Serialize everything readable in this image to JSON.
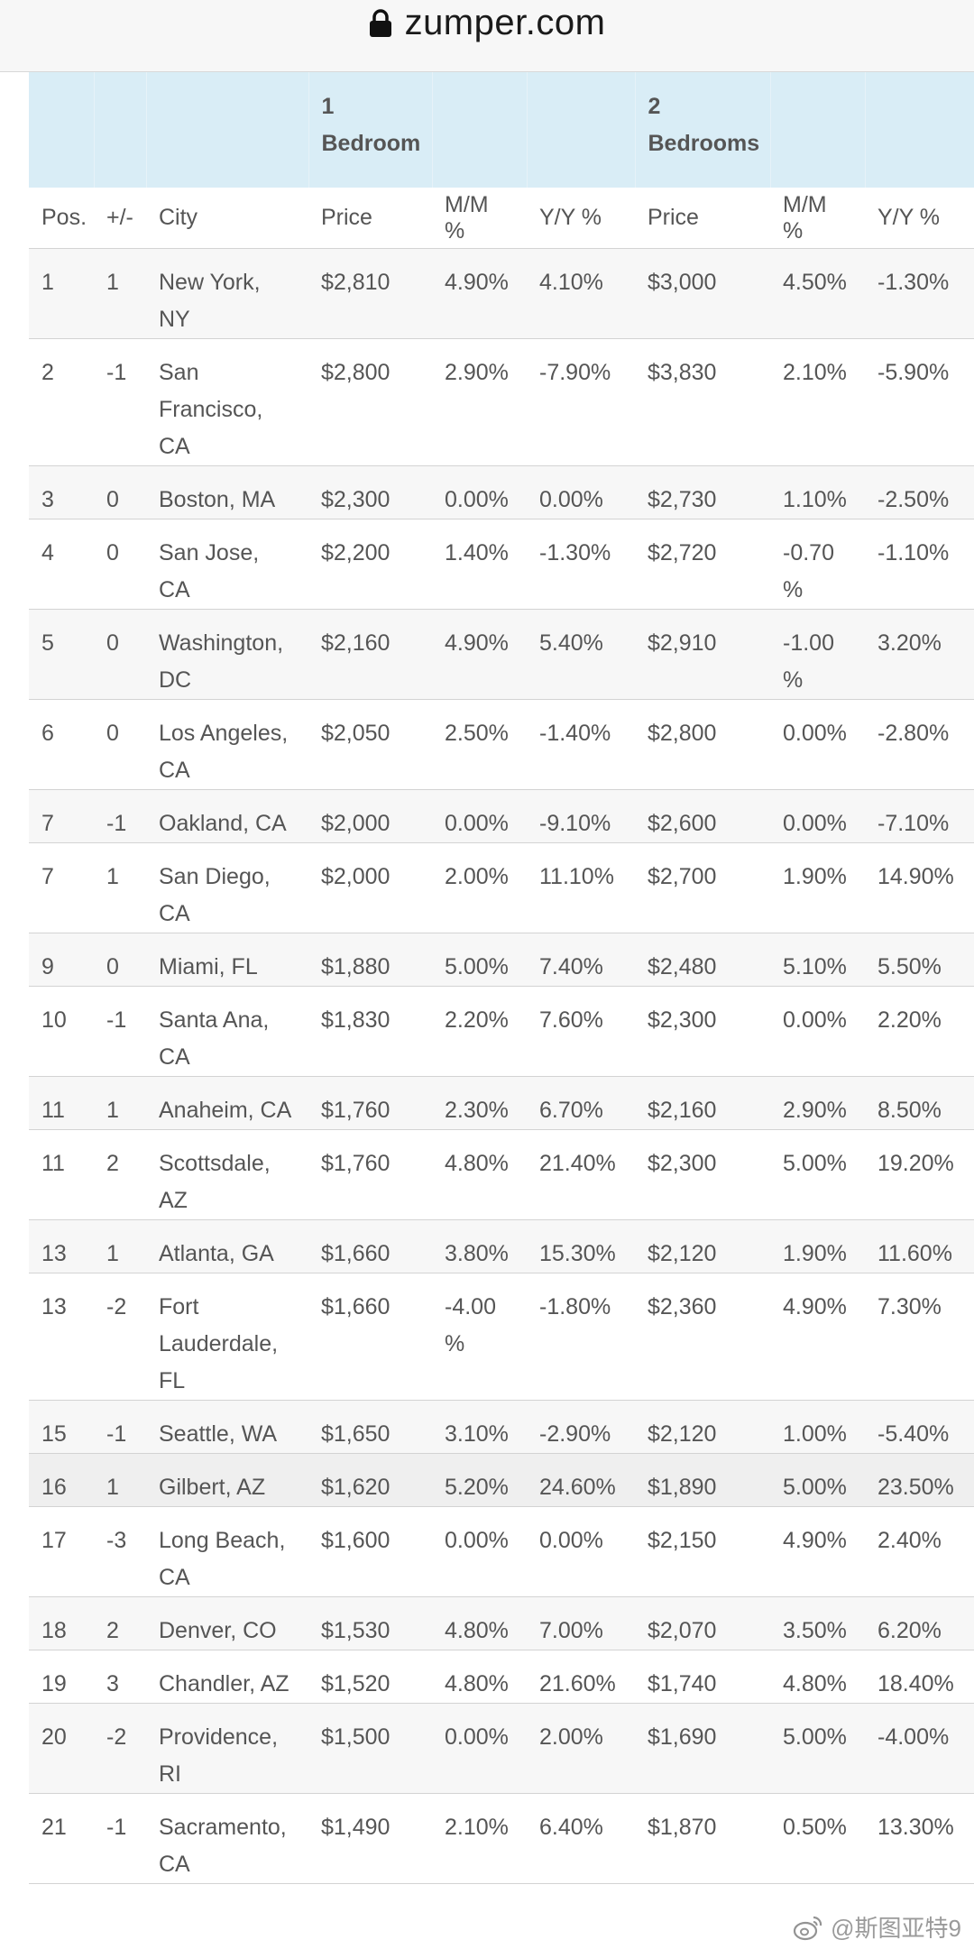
{
  "browser": {
    "url": "zumper.com"
  },
  "table": {
    "group_headers": [
      "",
      "",
      "",
      "1\nBedroom",
      "",
      "",
      "2\nBedrooms",
      "",
      ""
    ],
    "columns": [
      "Pos.",
      "+/-",
      "City",
      "Price",
      "M/M %",
      "Y/Y %",
      "Price",
      "M/M %",
      "Y/Y %"
    ],
    "rows": [
      [
        "1",
        "1",
        "New York, NY",
        "$2,810",
        "4.90%",
        "4.10%",
        "$3,000",
        "4.50%",
        "-1.30%"
      ],
      [
        "2",
        "-1",
        "San Francisco, CA",
        "$2,800",
        "2.90%",
        "-7.90%",
        "$3,830",
        "2.10%",
        "-5.90%"
      ],
      [
        "3",
        "0",
        "Boston, MA",
        "$2,300",
        "0.00%",
        "0.00%",
        "$2,730",
        "1.10%",
        "-2.50%"
      ],
      [
        "4",
        "0",
        "San Jose, CA",
        "$2,200",
        "1.40%",
        "-1.30%",
        "$2,720",
        "-0.70%",
        "-1.10%"
      ],
      [
        "5",
        "0",
        "Washington, DC",
        "$2,160",
        "4.90%",
        "5.40%",
        "$2,910",
        "-1.00%",
        "3.20%"
      ],
      [
        "6",
        "0",
        "Los Angeles, CA",
        "$2,050",
        "2.50%",
        "-1.40%",
        "$2,800",
        "0.00%",
        "-2.80%"
      ],
      [
        "7",
        "-1",
        "Oakland, CA",
        "$2,000",
        "0.00%",
        "-9.10%",
        "$2,600",
        "0.00%",
        "-7.10%"
      ],
      [
        "7",
        "1",
        "San Diego, CA",
        "$2,000",
        "2.00%",
        "11.10%",
        "$2,700",
        "1.90%",
        "14.90%"
      ],
      [
        "9",
        "0",
        "Miami, FL",
        "$1,880",
        "5.00%",
        "7.40%",
        "$2,480",
        "5.10%",
        "5.50%"
      ],
      [
        "10",
        "-1",
        "Santa Ana, CA",
        "$1,830",
        "2.20%",
        "7.60%",
        "$2,300",
        "0.00%",
        "2.20%"
      ],
      [
        "11",
        "1",
        "Anaheim, CA",
        "$1,760",
        "2.30%",
        "6.70%",
        "$2,160",
        "2.90%",
        "8.50%"
      ],
      [
        "11",
        "2",
        "Scottsdale, AZ",
        "$1,760",
        "4.80%",
        "21.40%",
        "$2,300",
        "5.00%",
        "19.20%"
      ],
      [
        "13",
        "1",
        "Atlanta, GA",
        "$1,660",
        "3.80%",
        "15.30%",
        "$2,120",
        "1.90%",
        "11.60%"
      ],
      [
        "13",
        "-2",
        "Fort Lauderdale, FL",
        "$1,660",
        "-4.00%",
        "-1.80%",
        "$2,360",
        "4.90%",
        "7.30%"
      ],
      [
        "15",
        "-1",
        "Seattle, WA",
        "$1,650",
        "3.10%",
        "-2.90%",
        "$2,120",
        "1.00%",
        "-5.40%"
      ],
      [
        "16",
        "1",
        "Gilbert, AZ",
        "$1,620",
        "5.20%",
        "24.60%",
        "$1,890",
        "5.00%",
        "23.50%"
      ],
      [
        "17",
        "-3",
        "Long Beach, CA",
        "$1,600",
        "0.00%",
        "0.00%",
        "$2,150",
        "4.90%",
        "2.40%"
      ],
      [
        "18",
        "2",
        "Denver, CO",
        "$1,530",
        "4.80%",
        "7.00%",
        "$2,070",
        "3.50%",
        "6.20%"
      ],
      [
        "19",
        "3",
        "Chandler, AZ",
        "$1,520",
        "4.80%",
        "21.60%",
        "$1,740",
        "4.80%",
        "18.40%"
      ],
      [
        "20",
        "-2",
        "Providence, RI",
        "$1,500",
        "0.00%",
        "2.00%",
        "$1,690",
        "5.00%",
        "-4.00%"
      ],
      [
        "21",
        "-1",
        "Sacramento, CA",
        "$1,490",
        "2.10%",
        "6.40%",
        "$1,870",
        "0.50%",
        "13.30%"
      ]
    ],
    "row_styles": [
      "alt",
      "plain",
      "alt",
      "plain",
      "alt",
      "plain",
      "alt",
      "plain",
      "alt",
      "plain",
      "alt",
      "plain",
      "alt",
      "plain",
      "alt",
      "hl",
      "plain",
      "alt",
      "plain",
      "alt",
      "plain"
    ]
  },
  "watermark": {
    "text": "@斯图亚特9",
    "icon": "weibo-icon"
  },
  "colors": {
    "header_band": "#d9edf6",
    "text": "#555555",
    "row_alt": "#f7f7f7"
  }
}
